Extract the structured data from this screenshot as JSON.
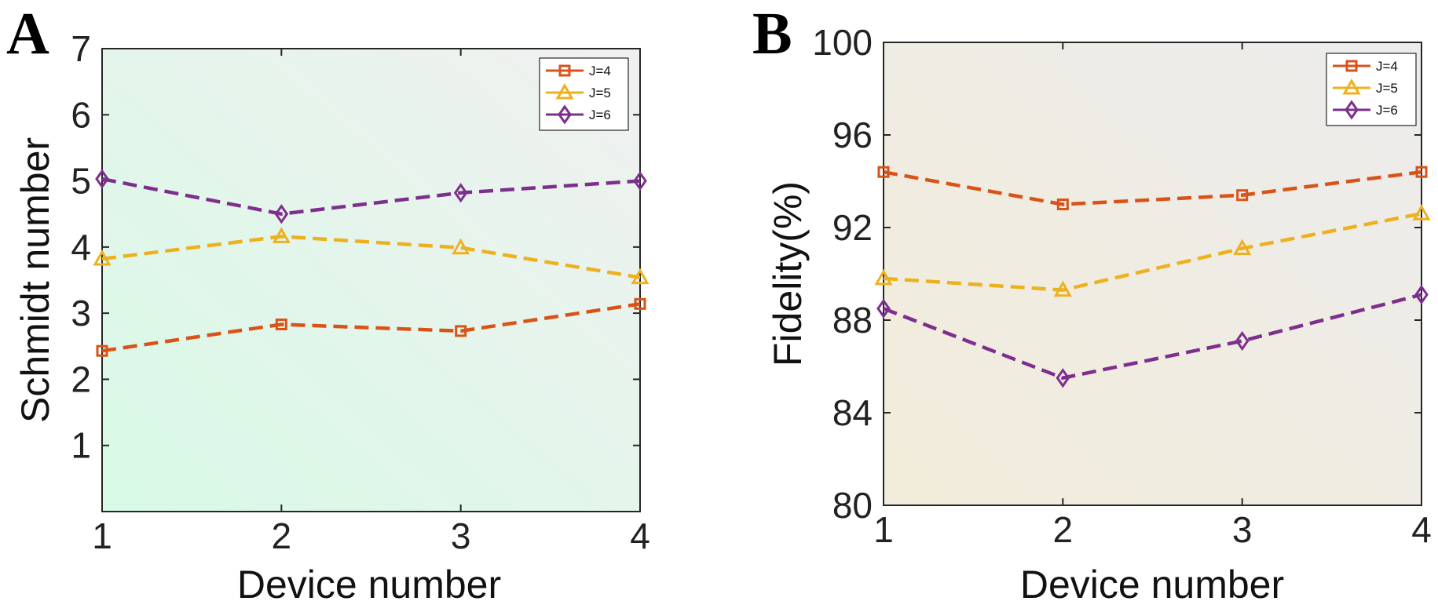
{
  "chart_data": [
    {
      "panel": "A",
      "type": "line",
      "xlabel": "Device number",
      "ylabel": "Schmidt number",
      "x": [
        1,
        2,
        3,
        4
      ],
      "xlim": [
        1,
        4
      ],
      "ylim": [
        0,
        7
      ],
      "xticks": [
        "1",
        "2",
        "3",
        "4"
      ],
      "yticks": [
        "1",
        "2",
        "3",
        "4",
        "5",
        "6",
        "7"
      ],
      "ytick_values": [
        1,
        2,
        3,
        4,
        5,
        6,
        7
      ],
      "legend_position": "top-right",
      "grid": false,
      "series": [
        {
          "name": "J=4",
          "color": "#D95319",
          "marker": "square",
          "values": [
            2.43,
            2.83,
            2.73,
            3.14
          ]
        },
        {
          "name": "J=5",
          "color": "#EDB120",
          "marker": "triangle",
          "values": [
            3.82,
            4.16,
            3.99,
            3.54
          ]
        },
        {
          "name": "J=6",
          "color": "#7E2F8E",
          "marker": "diamond",
          "values": [
            5.03,
            4.5,
            4.82,
            5.0
          ]
        }
      ],
      "background": {
        "from": "#d8fae6",
        "to": "#f0f0f0"
      }
    },
    {
      "panel": "B",
      "type": "line",
      "xlabel": "Device number",
      "ylabel": "Fidelity(%)",
      "x": [
        1,
        2,
        3,
        4
      ],
      "xlim": [
        1,
        4
      ],
      "ylim": [
        80,
        100
      ],
      "xticks": [
        "1",
        "2",
        "3",
        "4"
      ],
      "yticks": [
        "80",
        "84",
        "88",
        "92",
        "96",
        "100"
      ],
      "ytick_values": [
        80,
        84,
        88,
        92,
        96,
        100
      ],
      "legend_position": "top-right",
      "grid": false,
      "series": [
        {
          "name": "J=4",
          "color": "#D95319",
          "marker": "square",
          "values": [
            94.4,
            93.0,
            93.4,
            94.4
          ]
        },
        {
          "name": "J=5",
          "color": "#EDB120",
          "marker": "triangle",
          "values": [
            89.8,
            89.3,
            91.1,
            92.6
          ]
        },
        {
          "name": "J=6",
          "color": "#7E2F8E",
          "marker": "diamond",
          "values": [
            88.5,
            85.5,
            87.1,
            89.1
          ]
        }
      ],
      "background": {
        "from": "#f2ecda",
        "to": "#ececec"
      }
    }
  ]
}
